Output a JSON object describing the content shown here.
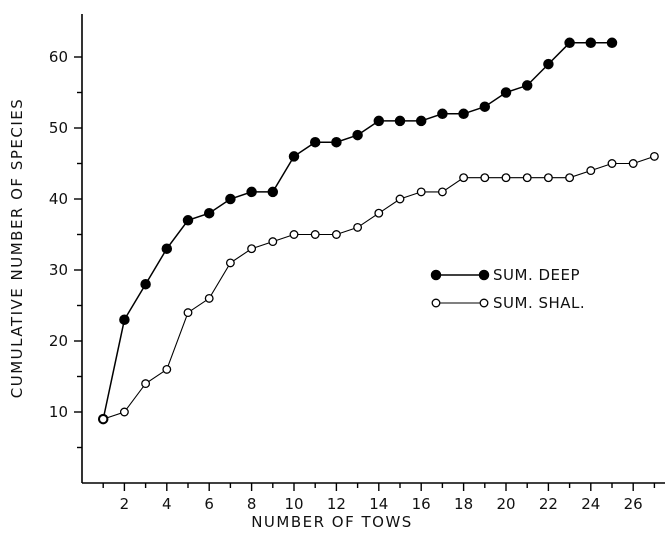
{
  "chart_data": {
    "type": "line",
    "title": "",
    "xlabel": "NUMBER OF TOWS",
    "ylabel": "CUMULATIVE NUMBER OF SPECIES",
    "xlim": [
      0,
      27
    ],
    "ylim": [
      0,
      64
    ],
    "x_ticks": [
      2,
      4,
      6,
      8,
      10,
      12,
      14,
      16,
      18,
      20,
      22,
      24,
      26
    ],
    "y_ticks": [
      10,
      20,
      30,
      40,
      50,
      60
    ],
    "grid": false,
    "legend_position": "center-right",
    "series": [
      {
        "name": "SUM. DEEP",
        "marker": "filled-circle",
        "color": "#000000",
        "x": [
          1,
          2,
          3,
          4,
          5,
          6,
          7,
          8,
          9,
          10,
          11,
          12,
          13,
          14,
          15,
          16,
          17,
          18,
          19,
          20,
          21,
          22,
          23,
          24,
          25
        ],
        "values": [
          9,
          23,
          28,
          33,
          37,
          38,
          40,
          41,
          41,
          46,
          48,
          48,
          49,
          51,
          51,
          51,
          52,
          52,
          53,
          55,
          56,
          59,
          62,
          62,
          62
        ]
      },
      {
        "name": "SUM. SHAL.",
        "marker": "open-circle",
        "color": "#000000",
        "x": [
          1,
          2,
          3,
          4,
          5,
          6,
          7,
          8,
          9,
          10,
          11,
          12,
          13,
          14,
          15,
          16,
          17,
          18,
          19,
          20,
          21,
          22,
          23,
          24,
          25,
          26,
          27
        ],
        "values": [
          9,
          10,
          14,
          16,
          24,
          26,
          31,
          33,
          34,
          35,
          35,
          35,
          36,
          38,
          40,
          41,
          41,
          43,
          43,
          43,
          43,
          43,
          43,
          44,
          45,
          45,
          46
        ]
      }
    ]
  }
}
